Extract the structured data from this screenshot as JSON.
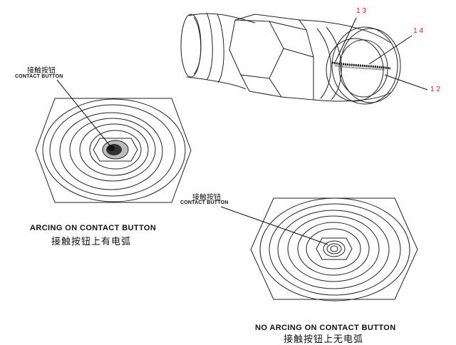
{
  "figure": {
    "colors": {
      "line": "#222222",
      "callout": "#d22020",
      "background": "#ffffff"
    },
    "top_view": {
      "label_cn": "接触按钮",
      "label_en": "CONTACT BUTTON",
      "caption_en": "ARCING ON CONTACT BUTTON",
      "caption_cn": "接触按钮上有电弧"
    },
    "bottom_view": {
      "label_cn": "接触按钮",
      "label_en": "CONTACT BUTTON",
      "caption_en": "NO ARCING ON CONTACT BUTTON",
      "caption_cn": "接触按钮上无电弧"
    },
    "side_view": {
      "callouts": [
        "1 3",
        "1 4",
        "1 2"
      ]
    }
  }
}
